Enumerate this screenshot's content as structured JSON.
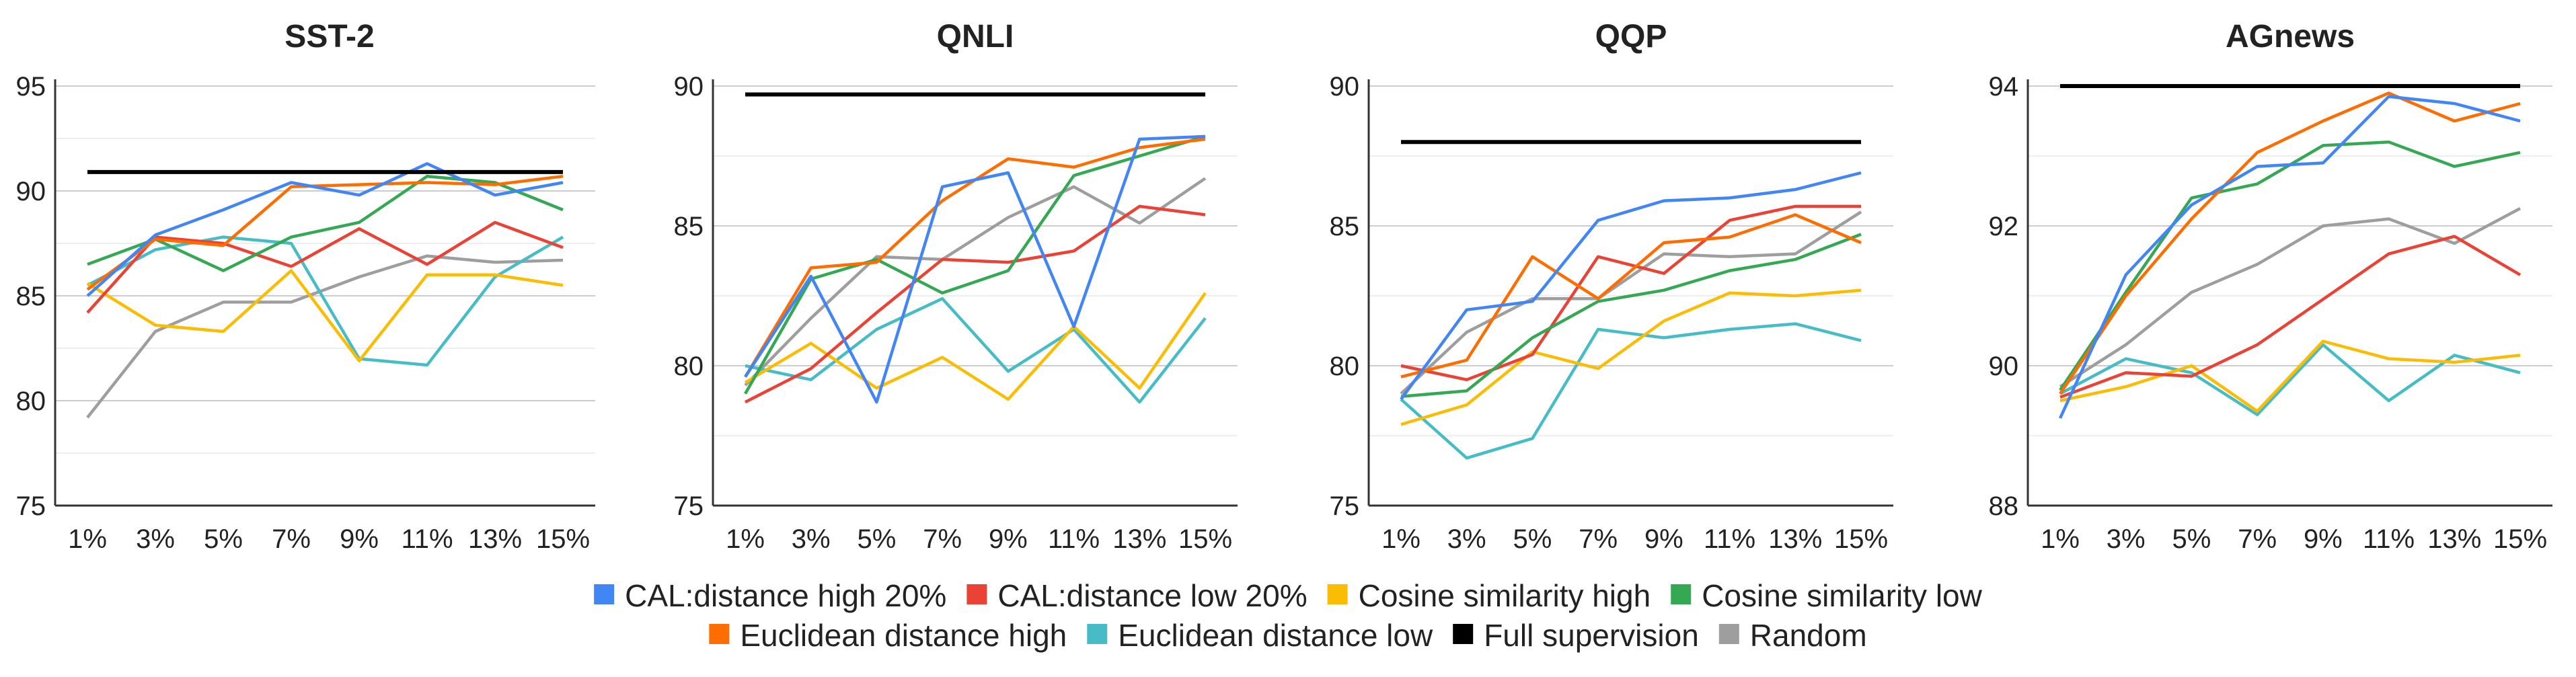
{
  "chart_data": [
    {
      "type": "line",
      "title": "SST-2",
      "categories": [
        "1%",
        "3%",
        "5%",
        "7%",
        "9%",
        "11%",
        "13%",
        "15%"
      ],
      "ylim": [
        75,
        95
      ],
      "yticks": [
        "75",
        "80",
        "85",
        "90",
        "95"
      ],
      "yticks_values": [
        75,
        80,
        85,
        90,
        95
      ],
      "grid": true,
      "series": [
        {
          "name": "CAL:distance high 20%",
          "values": [
            85.0,
            87.9,
            89.1,
            90.4,
            89.8,
            91.3,
            89.8,
            90.4
          ]
        },
        {
          "name": "CAL:distance low 20%",
          "values": [
            84.2,
            87.8,
            87.5,
            86.4,
            88.2,
            86.5,
            88.5,
            87.3
          ]
        },
        {
          "name": "Cosine similarity high",
          "values": [
            85.6,
            83.6,
            83.3,
            86.2,
            81.9,
            86.0,
            86.0,
            85.5
          ]
        },
        {
          "name": "Cosine similarity low",
          "values": [
            86.5,
            87.7,
            86.2,
            87.8,
            88.5,
            90.7,
            90.4,
            89.1
          ]
        },
        {
          "name": "Euclidean distance high",
          "values": [
            85.3,
            87.7,
            87.4,
            90.2,
            90.3,
            90.4,
            90.3,
            90.7
          ]
        },
        {
          "name": "Euclidean distance low",
          "values": [
            85.5,
            87.2,
            87.8,
            87.5,
            82.0,
            81.7,
            85.9,
            87.8
          ]
        },
        {
          "name": "Full supervision",
          "values": [
            90.9,
            90.9,
            90.9,
            90.9,
            90.9,
            90.9,
            90.9,
            90.9
          ]
        },
        {
          "name": "Random",
          "values": [
            79.2,
            83.3,
            84.7,
            84.7,
            85.9,
            86.9,
            86.6,
            86.7
          ]
        }
      ]
    },
    {
      "type": "line",
      "title": "QNLI",
      "categories": [
        "1%",
        "3%",
        "5%",
        "7%",
        "9%",
        "11%",
        "13%",
        "15%"
      ],
      "ylim": [
        75,
        90
      ],
      "yticks": [
        "75",
        "80",
        "85",
        "90"
      ],
      "yticks_values": [
        75,
        80,
        85,
        90
      ],
      "grid": true,
      "series": [
        {
          "name": "CAL:distance high 20%",
          "values": [
            79.6,
            83.2,
            78.7,
            86.4,
            86.9,
            81.4,
            88.1,
            88.2
          ]
        },
        {
          "name": "CAL:distance low 20%",
          "values": [
            78.7,
            79.9,
            81.9,
            83.8,
            83.7,
            84.1,
            85.7,
            85.4
          ]
        },
        {
          "name": "Cosine similarity high",
          "values": [
            79.4,
            80.8,
            79.2,
            80.3,
            78.8,
            81.4,
            79.2,
            82.6
          ]
        },
        {
          "name": "Cosine similarity low",
          "values": [
            79.0,
            83.1,
            83.8,
            82.6,
            83.4,
            86.8,
            87.5,
            88.2
          ]
        },
        {
          "name": "Euclidean distance high",
          "values": [
            79.6,
            83.5,
            83.7,
            85.9,
            87.4,
            87.1,
            87.8,
            88.1
          ]
        },
        {
          "name": "Euclidean distance low",
          "values": [
            80.0,
            79.5,
            81.3,
            82.4,
            79.8,
            81.3,
            78.7,
            81.7
          ]
        },
        {
          "name": "Full supervision",
          "values": [
            89.7,
            89.7,
            89.7,
            89.7,
            89.7,
            89.7,
            89.7,
            89.7
          ]
        },
        {
          "name": "Random",
          "values": [
            79.3,
            81.7,
            83.9,
            83.8,
            85.3,
            86.4,
            85.1,
            86.7
          ]
        }
      ]
    },
    {
      "type": "line",
      "title": "QQP",
      "categories": [
        "1%",
        "3%",
        "5%",
        "7%",
        "9%",
        "11%",
        "13%",
        "15%"
      ],
      "ylim": [
        75,
        90
      ],
      "yticks": [
        "75",
        "80",
        "85",
        "90"
      ],
      "yticks_values": [
        75,
        80,
        85,
        90
      ],
      "grid": true,
      "series": [
        {
          "name": "CAL:distance high 20%",
          "values": [
            78.8,
            82.0,
            82.3,
            85.2,
            85.9,
            86.0,
            86.3,
            86.9
          ]
        },
        {
          "name": "CAL:distance low 20%",
          "values": [
            80.0,
            79.5,
            80.4,
            83.9,
            83.3,
            85.2,
            85.7,
            85.7
          ]
        },
        {
          "name": "Cosine similarity high",
          "values": [
            77.9,
            78.6,
            80.5,
            79.9,
            81.6,
            82.6,
            82.5,
            82.7
          ]
        },
        {
          "name": "Cosine similarity low",
          "values": [
            78.9,
            79.1,
            81.0,
            82.3,
            82.7,
            83.4,
            83.8,
            84.7
          ]
        },
        {
          "name": "Euclidean distance high",
          "values": [
            79.6,
            80.2,
            83.9,
            82.4,
            84.4,
            84.6,
            85.4,
            84.4
          ]
        },
        {
          "name": "Euclidean distance low",
          "values": [
            78.8,
            76.7,
            77.4,
            81.3,
            81.0,
            81.3,
            81.5,
            80.9
          ]
        },
        {
          "name": "Full supervision",
          "values": [
            88.0,
            88.0,
            88.0,
            88.0,
            88.0,
            88.0,
            88.0,
            88.0
          ]
        },
        {
          "name": "Random",
          "values": [
            79.0,
            81.2,
            82.4,
            82.4,
            84.0,
            83.9,
            84.0,
            85.5
          ]
        }
      ]
    },
    {
      "type": "line",
      "title": "AGnews",
      "categories": [
        "1%",
        "3%",
        "5%",
        "7%",
        "9%",
        "11%",
        "13%",
        "15%"
      ],
      "ylim": [
        88,
        94
      ],
      "yticks": [
        "88",
        "90",
        "92",
        "94"
      ],
      "yticks_values": [
        88,
        90,
        92,
        94
      ],
      "grid": true,
      "series": [
        {
          "name": "CAL:distance high 20%",
          "values": [
            89.25,
            91.3,
            92.3,
            92.85,
            92.9,
            93.85,
            93.75,
            93.5
          ]
        },
        {
          "name": "CAL:distance low 20%",
          "values": [
            89.55,
            89.9,
            89.85,
            90.3,
            90.95,
            91.6,
            91.85,
            91.3
          ]
        },
        {
          "name": "Cosine similarity high",
          "values": [
            89.5,
            89.7,
            90.0,
            89.35,
            90.35,
            90.1,
            90.05,
            90.15
          ]
        },
        {
          "name": "Cosine similarity low",
          "values": [
            89.65,
            91.05,
            92.4,
            92.6,
            93.15,
            93.2,
            92.85,
            93.05
          ]
        },
        {
          "name": "Euclidean distance high",
          "values": [
            89.6,
            91.0,
            92.1,
            93.05,
            93.5,
            93.9,
            93.5,
            93.75
          ]
        },
        {
          "name": "Euclidean distance low",
          "values": [
            89.6,
            90.1,
            89.9,
            89.3,
            90.3,
            89.5,
            90.15,
            89.9
          ]
        },
        {
          "name": "Full supervision",
          "values": [
            94.0,
            94.0,
            94.0,
            94.0,
            94.0,
            94.0,
            94.0,
            94.0
          ]
        },
        {
          "name": "Random",
          "values": [
            89.7,
            90.3,
            91.05,
            91.45,
            92.0,
            92.1,
            91.75,
            92.25
          ]
        }
      ]
    }
  ],
  "legend": {
    "rows": [
      [
        "CAL:distance high 20%",
        "CAL:distance low 20%",
        "Cosine similarity high",
        "Cosine similarity low"
      ],
      [
        "Euclidean distance high",
        "Euclidean distance low",
        "Full supervision",
        "Random"
      ]
    ]
  },
  "colors": {
    "CAL:distance high 20%": "#4285f4",
    "CAL:distance low 20%": "#ea4335",
    "Cosine similarity high": "#fbbc04",
    "Cosine similarity low": "#34a853",
    "Euclidean distance high": "#ff6d01",
    "Euclidean distance low": "#46bdc6",
    "Full supervision": "#000000",
    "Random": "#9e9e9e"
  }
}
